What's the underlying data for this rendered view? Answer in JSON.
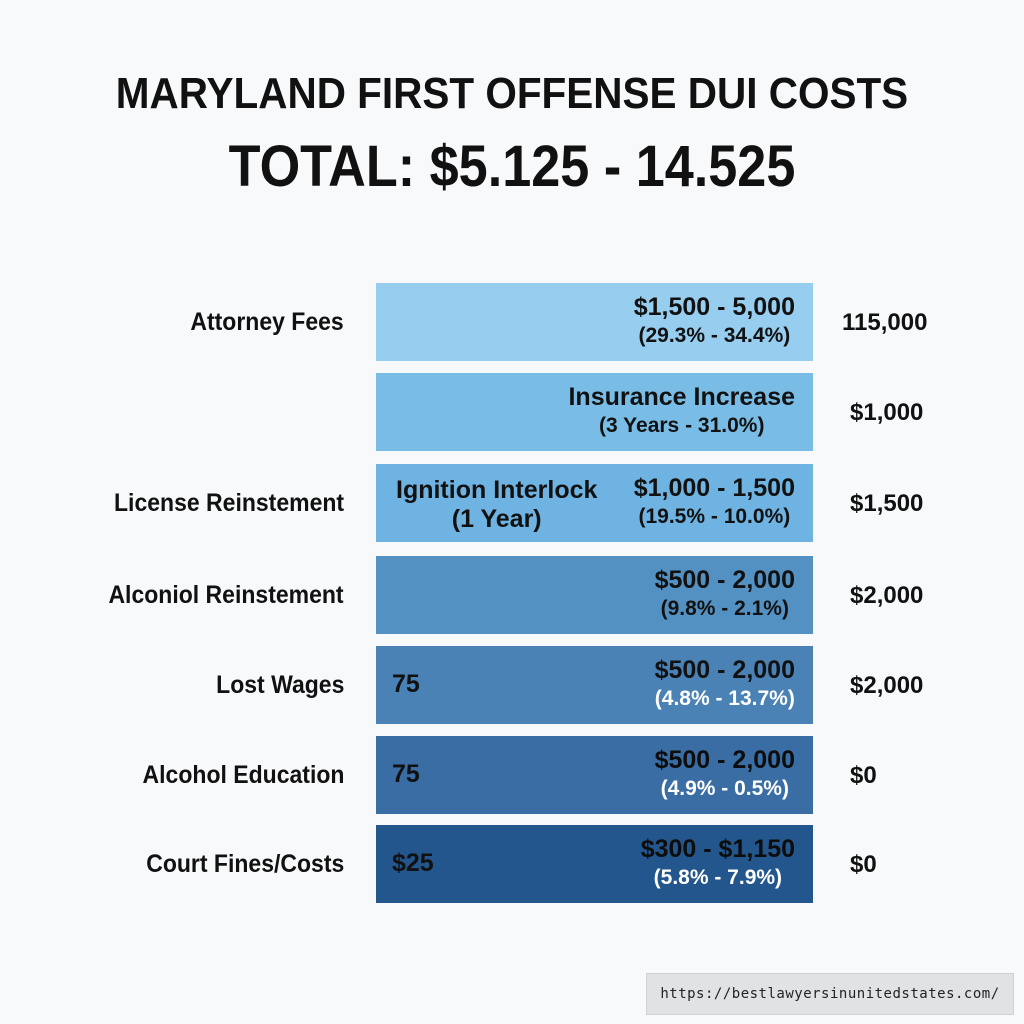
{
  "header": {
    "title": "MARYLAND FIRST OFFENSE DUI COSTS",
    "subtitle": "TOTAL: $5.125 - 14.525"
  },
  "chart_data": {
    "type": "table",
    "title": "MARYLAND FIRST OFFENSE DUI COSTS",
    "subtitle": "TOTAL: $5.125 - 14.525",
    "rows": [
      {
        "label": "Attorney Fees",
        "bar_left": "",
        "bar_value": "$1,500 - 5,000",
        "bar_detail": "(29.3% - 34.4%)",
        "right": "115,000",
        "color": "#97cdee",
        "text_color": "#111111"
      },
      {
        "label": "",
        "bar_left": "",
        "bar_value": "Insurance Increase",
        "bar_detail": "(3 Years - 31.0%)",
        "right": "$1,000",
        "color": "#79bde7",
        "text_color": "#111111"
      },
      {
        "label": "License Reinstement",
        "bar_left": "Ignition Interlock\n(1 Year)",
        "bar_value": "$1,000 - 1,500",
        "bar_detail": "(19.5% - 10.0%)",
        "right": "$1,500",
        "color": "#6eb3e2",
        "text_color": "#111111"
      },
      {
        "label": "Alconiol Reinstement",
        "bar_left": "",
        "bar_value": "$500 - 2,000",
        "bar_detail": "(9.8% - 2.1%)",
        "right": "$2,000",
        "color": "#5491c3",
        "text_color": "#111111"
      },
      {
        "label": "Lost Wages",
        "bar_left": "75",
        "bar_value": "$500 - 2,000",
        "bar_detail": "(4.8% - 13.7%)",
        "right": "$2,000",
        "color": "#4a82b6",
        "text_color": "#111111",
        "detail_color": "#ffffff"
      },
      {
        "label": "Alcohol Education",
        "bar_left": "75",
        "bar_value": "$500 - 2,000",
        "bar_detail": "(4.9% - 0.5%)",
        "right": "$0",
        "color": "#3a6da3",
        "text_color": "#0d0d0d",
        "detail_color": "#ffffff"
      },
      {
        "label": "Court Fines/Costs",
        "bar_left": "$25",
        "bar_value": "$300 - $1,150",
        "bar_detail": "(5.8% - 7.9%)",
        "right": "$0",
        "color": "#23568c",
        "text_color": "#0d0d0d",
        "detail_color": "#ffffff"
      }
    ]
  },
  "watermark": {
    "text": "https://bestlawyersinunitedstates.com/"
  }
}
